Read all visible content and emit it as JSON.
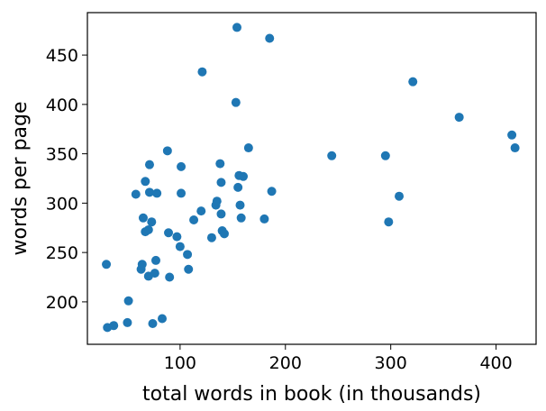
{
  "chart_data": {
    "type": "scatter",
    "title": "",
    "xlabel": "total words in book (in thousands)",
    "ylabel": "words per page",
    "xlim": [
      12,
      438
    ],
    "ylim": [
      157,
      493
    ],
    "x_ticks": [
      100,
      200,
      300,
      400
    ],
    "y_ticks": [
      200,
      250,
      300,
      350,
      400,
      450
    ],
    "x_tick_labels": [
      "100",
      "200",
      "300",
      "400"
    ],
    "y_tick_labels": [
      "200",
      "250",
      "300",
      "350",
      "400",
      "450"
    ],
    "grid": false,
    "legend": "none",
    "point_color": "#1f77b4",
    "points": [
      {
        "x": 30,
        "y": 238
      },
      {
        "x": 31,
        "y": 174
      },
      {
        "x": 37,
        "y": 176
      },
      {
        "x": 50,
        "y": 179
      },
      {
        "x": 51,
        "y": 201
      },
      {
        "x": 58,
        "y": 309
      },
      {
        "x": 63,
        "y": 233
      },
      {
        "x": 64,
        "y": 238
      },
      {
        "x": 65,
        "y": 285
      },
      {
        "x": 67,
        "y": 271
      },
      {
        "x": 67,
        "y": 322
      },
      {
        "x": 70,
        "y": 226
      },
      {
        "x": 70,
        "y": 273
      },
      {
        "x": 71,
        "y": 339
      },
      {
        "x": 71,
        "y": 311
      },
      {
        "x": 73,
        "y": 281
      },
      {
        "x": 74,
        "y": 178
      },
      {
        "x": 76,
        "y": 229
      },
      {
        "x": 77,
        "y": 242
      },
      {
        "x": 78,
        "y": 310
      },
      {
        "x": 83,
        "y": 183
      },
      {
        "x": 88,
        "y": 353
      },
      {
        "x": 89,
        "y": 270
      },
      {
        "x": 90,
        "y": 225
      },
      {
        "x": 97,
        "y": 266
      },
      {
        "x": 100,
        "y": 256
      },
      {
        "x": 101,
        "y": 310
      },
      {
        "x": 101,
        "y": 337
      },
      {
        "x": 107,
        "y": 248
      },
      {
        "x": 108,
        "y": 233
      },
      {
        "x": 113,
        "y": 283
      },
      {
        "x": 120,
        "y": 292
      },
      {
        "x": 121,
        "y": 433
      },
      {
        "x": 130,
        "y": 265
      },
      {
        "x": 134,
        "y": 298
      },
      {
        "x": 135,
        "y": 302
      },
      {
        "x": 138,
        "y": 340
      },
      {
        "x": 139,
        "y": 289
      },
      {
        "x": 139,
        "y": 321
      },
      {
        "x": 140,
        "y": 272
      },
      {
        "x": 142,
        "y": 269
      },
      {
        "x": 153,
        "y": 402
      },
      {
        "x": 154,
        "y": 478
      },
      {
        "x": 155,
        "y": 316
      },
      {
        "x": 156,
        "y": 328
      },
      {
        "x": 157,
        "y": 298
      },
      {
        "x": 158,
        "y": 285
      },
      {
        "x": 160,
        "y": 327
      },
      {
        "x": 165,
        "y": 356
      },
      {
        "x": 180,
        "y": 284
      },
      {
        "x": 185,
        "y": 467
      },
      {
        "x": 187,
        "y": 312
      },
      {
        "x": 244,
        "y": 348
      },
      {
        "x": 295,
        "y": 348
      },
      {
        "x": 298,
        "y": 281
      },
      {
        "x": 308,
        "y": 307
      },
      {
        "x": 321,
        "y": 423
      },
      {
        "x": 365,
        "y": 387
      },
      {
        "x": 415,
        "y": 369
      },
      {
        "x": 418,
        "y": 356
      }
    ]
  }
}
